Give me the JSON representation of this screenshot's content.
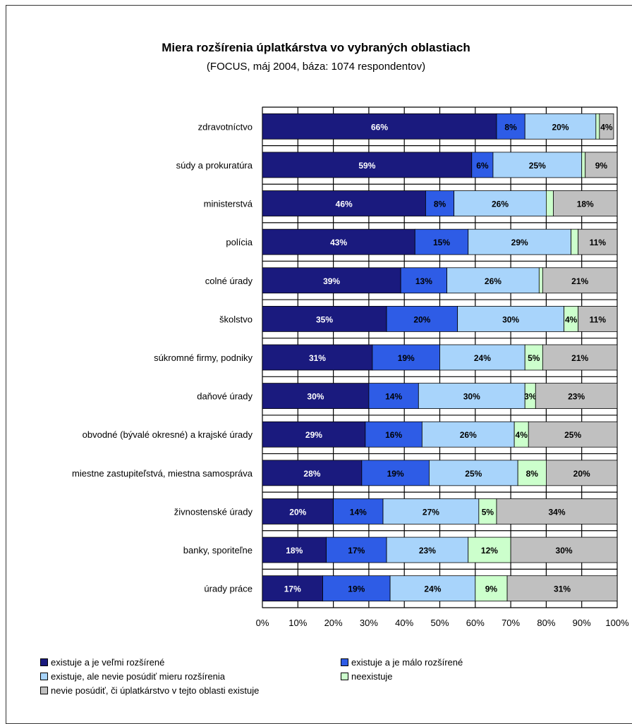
{
  "chart_data": {
    "type": "bar",
    "stacked": true,
    "orientation": "horizontal",
    "percent_scale": true,
    "title": "Miera rozšírenia úplatkárstva vo vybraných oblastiach",
    "subtitle": "(FOCUS, máj 2004, báza: 1074 respondentov)",
    "xlim": [
      0,
      100
    ],
    "x_ticks": [
      "0%",
      "10%",
      "20%",
      "30%",
      "40%",
      "50%",
      "60%",
      "70%",
      "80%",
      "90%",
      "100%"
    ],
    "legend_position": "bottom",
    "categories": [
      "zdravotníctvo",
      "súdy a prokuratúra",
      "ministerstvá",
      "polícia",
      "colné úrady",
      "školstvo",
      "súkromné firmy, podniky",
      "daňové úrady",
      "obvodné (bývalé okresné) a krajské úrady",
      "miestne zastupiteľstvá, miestna samospráva",
      "živnostenské úrady",
      "banky, sporiteľne",
      "úrady práce"
    ],
    "series": [
      {
        "name": "existuje a je veľmi rozšírené",
        "color": "#1a1a7e",
        "label_color": "#ffffff",
        "values": [
          66,
          59,
          46,
          43,
          39,
          35,
          31,
          30,
          29,
          28,
          20,
          18,
          17
        ],
        "labels": [
          "66%",
          "59%",
          "46%",
          "43%",
          "39%",
          "35%",
          "31%",
          "30%",
          "29%",
          "28%",
          "20%",
          "18%",
          "17%"
        ]
      },
      {
        "name": "existuje a je málo rozšírené",
        "color": "#2e5ce6",
        "label_color": "#000000",
        "values": [
          8,
          6,
          8,
          15,
          13,
          20,
          19,
          14,
          16,
          19,
          14,
          17,
          19
        ],
        "labels": [
          "8%",
          "6%",
          "8%",
          "15%",
          "13%",
          "20%",
          "19%",
          "14%",
          "16%",
          "19%",
          "14%",
          "17%",
          "19%"
        ]
      },
      {
        "name": "existuje, ale nevie posúdiť mieru rozšírenia",
        "color": "#a8d4fb",
        "label_color": "#000000",
        "values": [
          20,
          25,
          26,
          29,
          26,
          30,
          24,
          30,
          26,
          25,
          27,
          23,
          24
        ],
        "labels": [
          "20%",
          "25%",
          "26%",
          "29%",
          "26%",
          "30%",
          "24%",
          "30%",
          "26%",
          "25%",
          "27%",
          "23%",
          "24%"
        ]
      },
      {
        "name": "neexistuje",
        "color": "#ccffcc",
        "label_color": "#000000",
        "values": [
          1,
          1,
          2,
          2,
          1,
          4,
          5,
          3,
          4,
          8,
          5,
          12,
          9
        ],
        "labels": [
          "",
          "",
          "",
          "",
          "",
          "4%",
          "5%",
          "3%",
          "4%",
          "8%",
          "5%",
          "12%",
          "9%"
        ]
      },
      {
        "name": "nevie posúdiť, či úplatkárstvo v tejto oblasti existuje",
        "color": "#c0c0c0",
        "label_color": "#000000",
        "values": [
          4,
          9,
          18,
          11,
          21,
          11,
          21,
          23,
          25,
          20,
          34,
          30,
          31
        ],
        "labels": [
          "4%",
          "9%",
          "18%",
          "11%",
          "21%",
          "11%",
          "21%",
          "23%",
          "25%",
          "20%",
          "34%",
          "30%",
          "31%"
        ]
      }
    ],
    "legend": [
      {
        "text": "existuje a je veľmi rozšírené",
        "color": "#1a1a7e"
      },
      {
        "text": "existuje a je málo rozšírené",
        "color": "#2e5ce6"
      },
      {
        "text": "existuje, ale nevie posúdiť mieru rozšírenia",
        "color": "#a8d4fb"
      },
      {
        "text": "neexistuje",
        "color": "#ccffcc"
      },
      {
        "text": "nevie posúdiť, či úplatkárstvo v tejto oblasti existuje",
        "color": "#c0c0c0"
      }
    ]
  }
}
